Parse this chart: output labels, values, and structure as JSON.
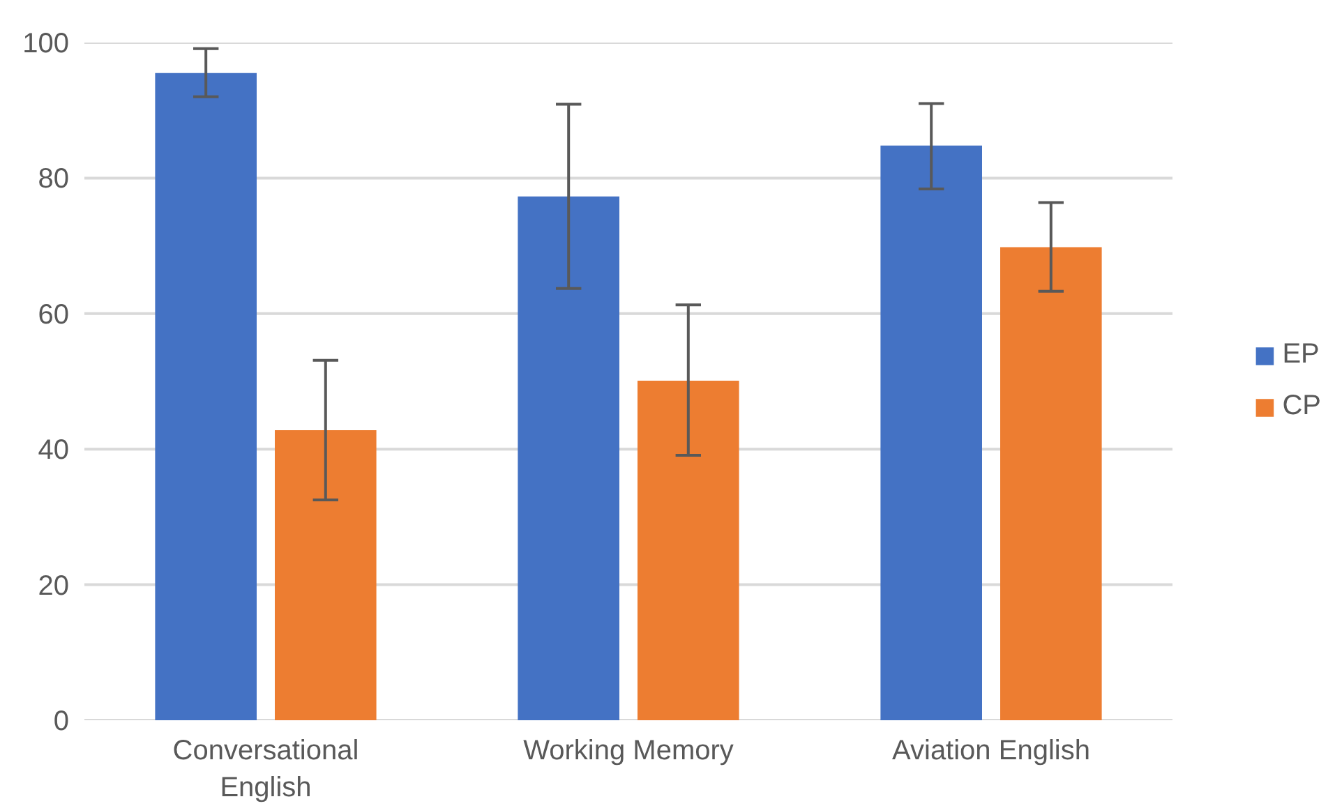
{
  "chart_data": {
    "type": "bar",
    "categories": [
      "Conversational English",
      "Working Memory",
      "Aviation English"
    ],
    "series": [
      {
        "name": "EP",
        "color": "#4472c4",
        "values": [
          95.5,
          77.3,
          84.8
        ],
        "errors": [
          [
            92.0,
            99.1
          ],
          [
            63.7,
            90.9
          ],
          [
            78.4,
            91.0
          ]
        ]
      },
      {
        "name": "CP",
        "color": "#ed7d31",
        "values": [
          42.8,
          50.1,
          69.8
        ],
        "errors": [
          [
            32.5,
            53.1
          ],
          [
            39.1,
            61.3
          ],
          [
            63.3,
            76.4
          ]
        ]
      }
    ],
    "ylim": [
      0,
      100
    ],
    "yticks": [
      0,
      20,
      40,
      60,
      80,
      100
    ],
    "grid": "y",
    "legend": "right"
  }
}
